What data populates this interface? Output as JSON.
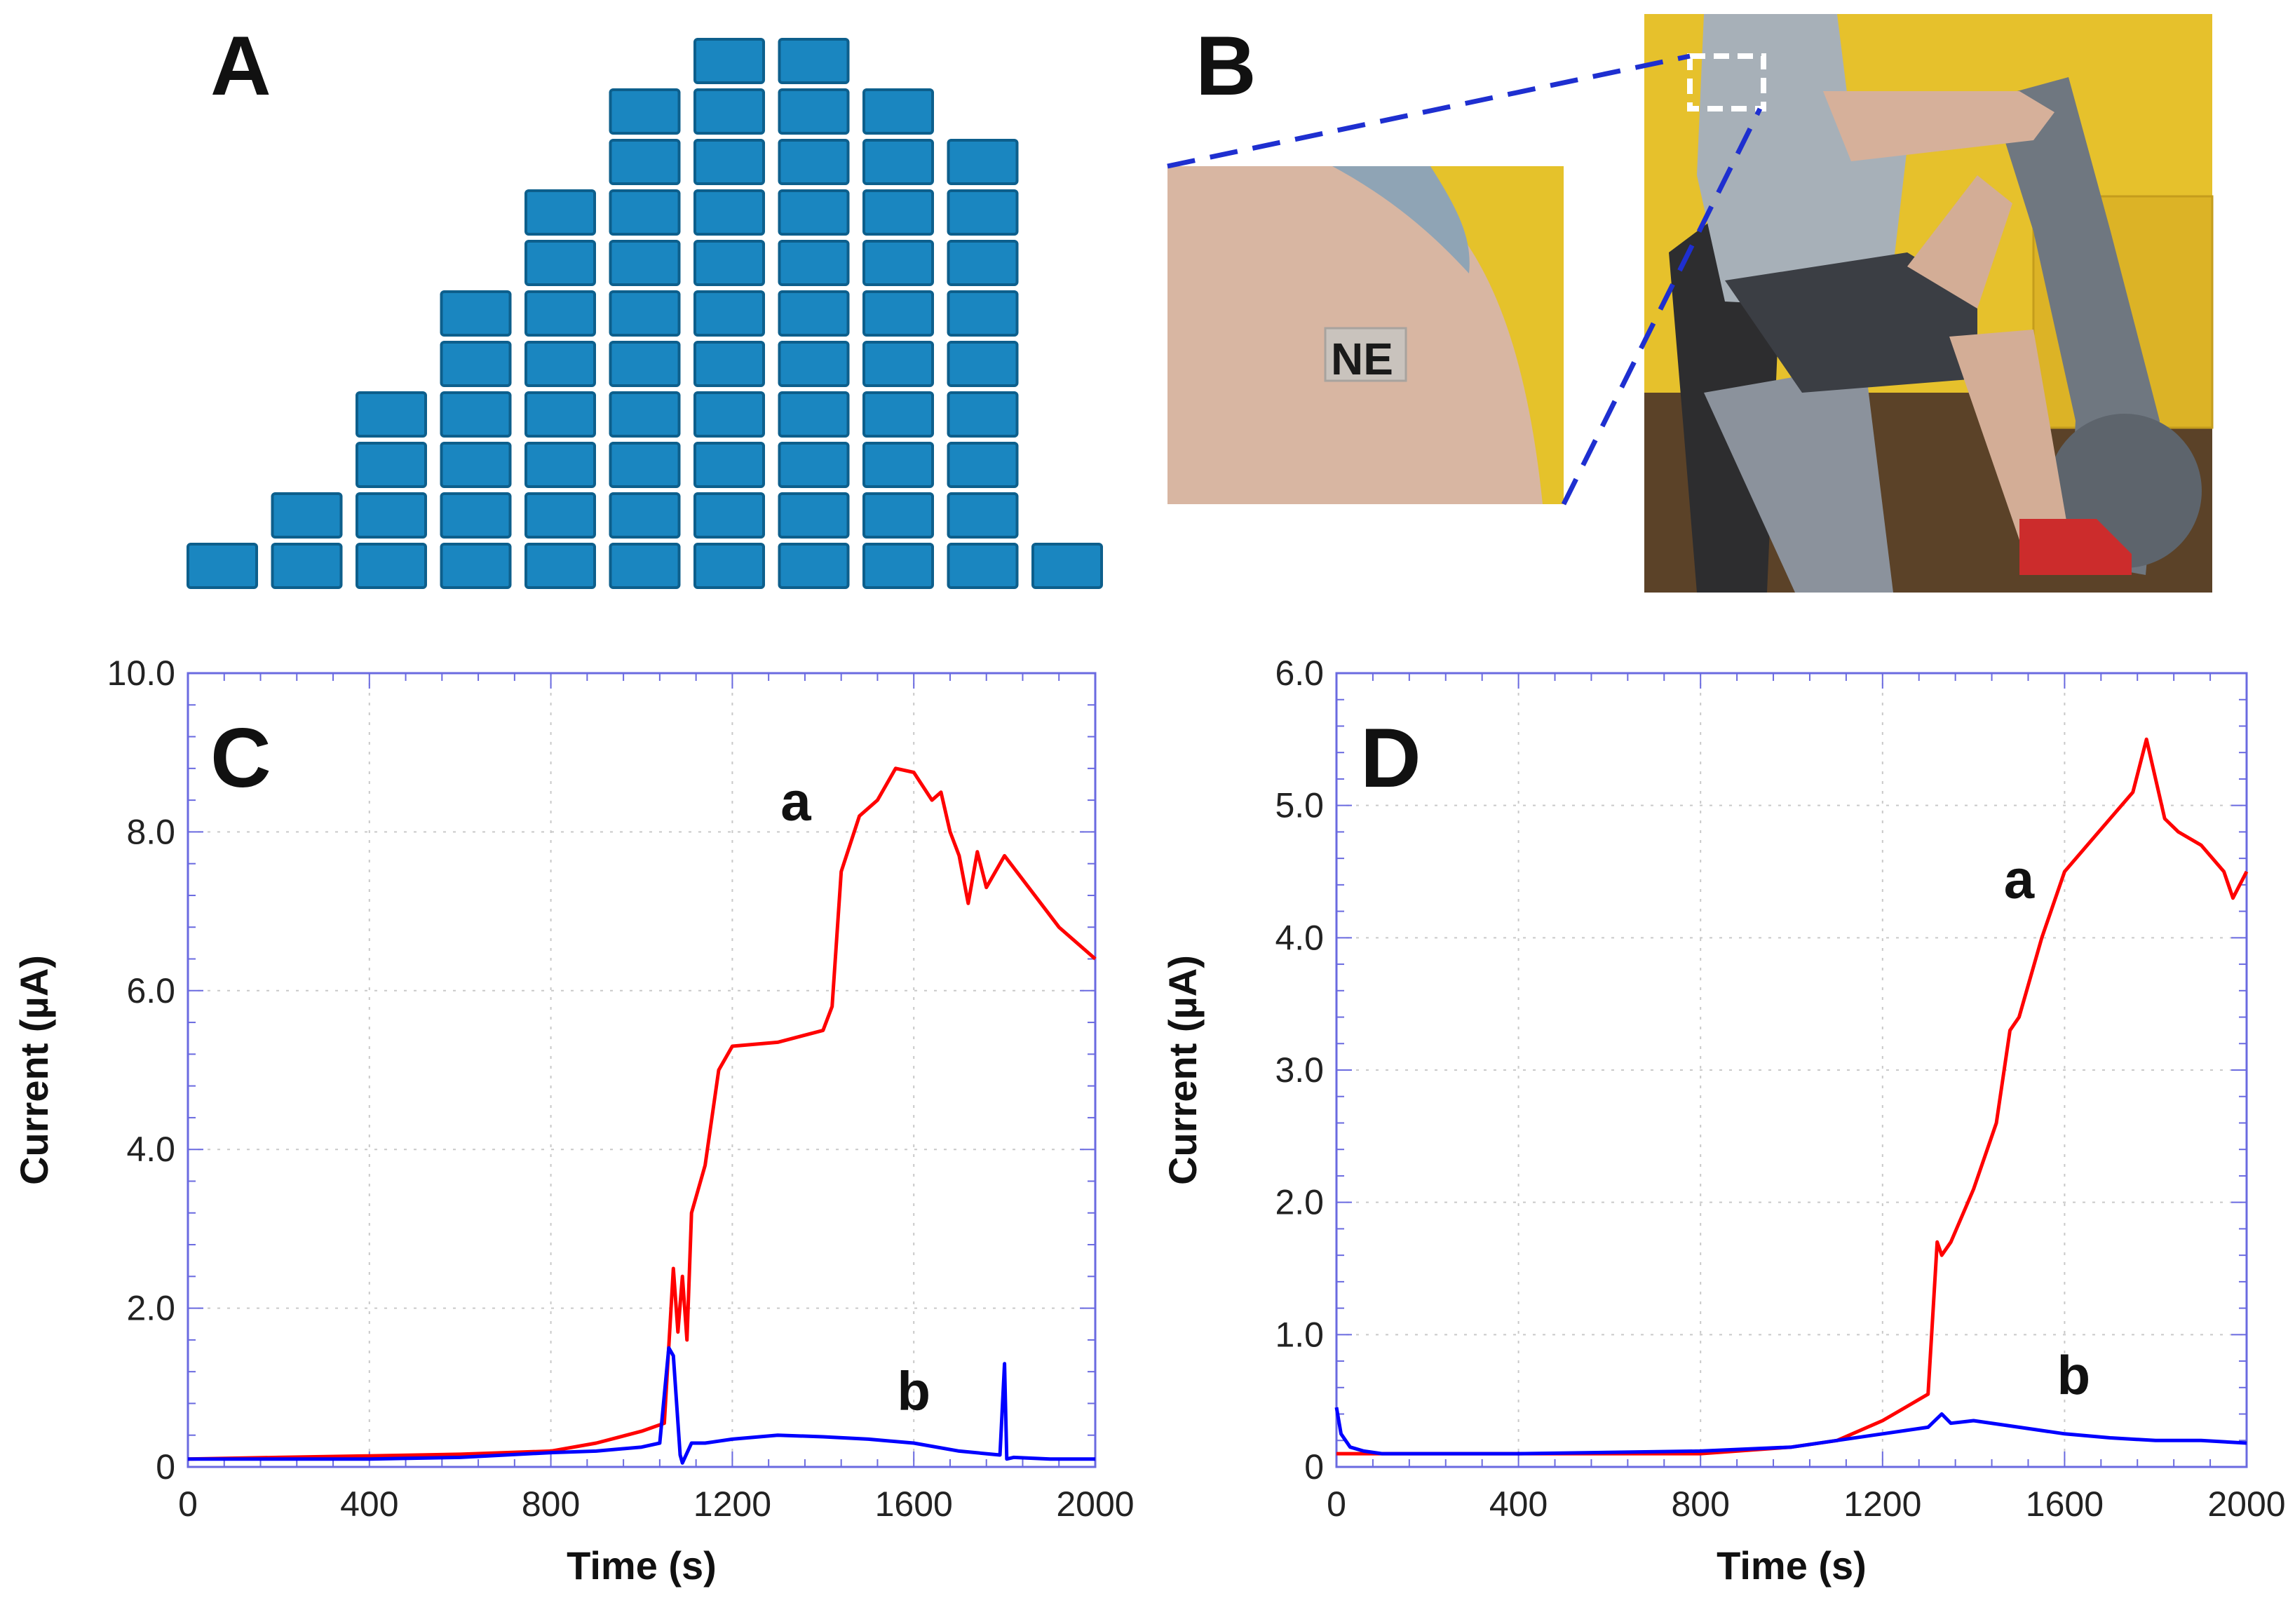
{
  "panels": {
    "a": "A",
    "b": "B",
    "c": "C",
    "d": "D"
  },
  "colors": {
    "block_fill": "#1a86c0",
    "block_stroke": "#0d5f8c",
    "curve_a": "#ff0000",
    "curve_b": "#0000ff",
    "axis": "#6a6ae0",
    "grid": "#c9c9c9",
    "wall": "#e7c22f",
    "skin": "#d9b9a4",
    "dash": "#1e2fd0"
  },
  "photo": {
    "patch_text": "NE",
    "subject": "Subject wearing a tattoo sensor on the upper arm while cycling on a stationary bike"
  },
  "histogram": {
    "column_counts": [
      1,
      2,
      4,
      6,
      8,
      10,
      11,
      11,
      10,
      9,
      1
    ]
  },
  "chart_data": [
    {
      "panel": "C",
      "type": "line",
      "xlabel": "Time (s)",
      "ylabel": "Current (µA)",
      "xlim": [
        0,
        2000
      ],
      "ylim": [
        0,
        10
      ],
      "xticks": [
        0,
        400,
        800,
        1200,
        1600,
        2000
      ],
      "yticks": [
        0,
        2,
        4,
        6,
        8,
        10
      ],
      "xtick_labels": [
        "0",
        "400",
        "800",
        "1200",
        "1600",
        "2000"
      ],
      "ytick_labels": [
        "0",
        "2.0",
        "4.0",
        "6.0",
        "8.0",
        "10.0"
      ],
      "grid": true,
      "series": [
        {
          "name": "a",
          "color": "#ff0000",
          "label_pos": [
            1340,
            8.15
          ],
          "x": [
            0,
            200,
            400,
            600,
            800,
            900,
            1000,
            1050,
            1070,
            1080,
            1090,
            1100,
            1110,
            1140,
            1170,
            1200,
            1300,
            1400,
            1420,
            1440,
            1480,
            1520,
            1560,
            1600,
            1640,
            1660,
            1680,
            1700,
            1720,
            1740,
            1760,
            1800,
            1840,
            1880,
            1920,
            1960,
            2000
          ],
          "y": [
            0.1,
            0.12,
            0.14,
            0.16,
            0.2,
            0.3,
            0.45,
            0.55,
            2.5,
            1.7,
            2.4,
            1.6,
            3.2,
            3.8,
            5.0,
            5.3,
            5.35,
            5.5,
            5.8,
            7.5,
            8.2,
            8.4,
            8.8,
            8.75,
            8.4,
            8.5,
            8.0,
            7.7,
            7.1,
            7.75,
            7.3,
            7.7,
            7.4,
            7.1,
            6.8,
            6.6,
            6.4
          ]
        },
        {
          "name": "b",
          "color": "#0000ff",
          "label_pos": [
            1600,
            0.72
          ],
          "x": [
            0,
            200,
            400,
            600,
            800,
            900,
            1000,
            1040,
            1060,
            1070,
            1085,
            1090,
            1110,
            1140,
            1200,
            1300,
            1400,
            1500,
            1600,
            1700,
            1790,
            1800,
            1805,
            1820,
            1900,
            2000
          ],
          "y": [
            0.1,
            0.1,
            0.1,
            0.12,
            0.18,
            0.2,
            0.25,
            0.3,
            1.5,
            1.4,
            0.15,
            0.05,
            0.3,
            0.3,
            0.35,
            0.4,
            0.38,
            0.35,
            0.3,
            0.2,
            0.15,
            1.3,
            0.1,
            0.12,
            0.1,
            0.1
          ]
        }
      ]
    },
    {
      "panel": "D",
      "type": "line",
      "xlabel": "Time (s)",
      "ylabel": "Current (µA)",
      "xlim": [
        0,
        2000
      ],
      "ylim": [
        0,
        6
      ],
      "xticks": [
        0,
        400,
        800,
        1200,
        1600,
        2000
      ],
      "yticks": [
        0,
        1,
        2,
        3,
        4,
        5,
        6
      ],
      "xtick_labels": [
        "0",
        "400",
        "800",
        "1200",
        "1600",
        "2000"
      ],
      "ytick_labels": [
        "0",
        "1.0",
        "2.0",
        "3.0",
        "4.0",
        "5.0",
        "6.0"
      ],
      "grid": true,
      "series": [
        {
          "name": "a",
          "color": "#ff0000",
          "label_pos": [
            1500,
            4.3
          ],
          "x": [
            0,
            200,
            400,
            800,
            1000,
            1100,
            1200,
            1250,
            1300,
            1320,
            1330,
            1350,
            1400,
            1450,
            1480,
            1500,
            1550,
            1600,
            1650,
            1700,
            1750,
            1780,
            1800,
            1820,
            1850,
            1900,
            1950,
            1970,
            2000
          ],
          "y": [
            0.1,
            0.1,
            0.1,
            0.1,
            0.15,
            0.2,
            0.35,
            0.45,
            0.55,
            1.7,
            1.6,
            1.7,
            2.1,
            2.6,
            3.3,
            3.4,
            4.0,
            4.5,
            4.7,
            4.9,
            5.1,
            5.5,
            5.2,
            4.9,
            4.8,
            4.7,
            4.5,
            4.3,
            4.5
          ]
        },
        {
          "name": "b",
          "color": "#0000ff",
          "label_pos": [
            1620,
            0.55
          ],
          "x": [
            0,
            10,
            30,
            60,
            100,
            200,
            400,
            800,
            1000,
            1200,
            1300,
            1330,
            1350,
            1400,
            1500,
            1600,
            1700,
            1800,
            1900,
            2000
          ],
          "y": [
            0.45,
            0.25,
            0.15,
            0.12,
            0.1,
            0.1,
            0.1,
            0.12,
            0.15,
            0.25,
            0.3,
            0.4,
            0.33,
            0.35,
            0.3,
            0.25,
            0.22,
            0.2,
            0.2,
            0.18
          ]
        }
      ]
    }
  ]
}
